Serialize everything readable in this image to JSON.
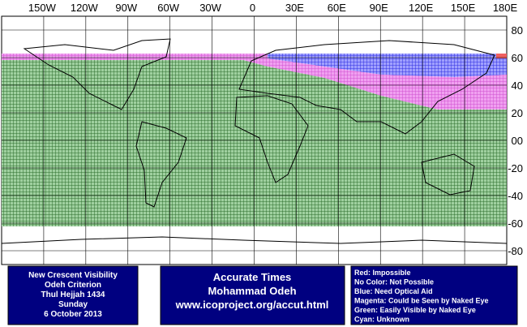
{
  "map": {
    "lon_labels": [
      "150W",
      "120W",
      "90W",
      "60W",
      "30W",
      "0",
      "30E",
      "60E",
      "90E",
      "120E",
      "150E",
      "180E"
    ],
    "lat_labels": [
      "80",
      "60",
      "40",
      "20",
      "00",
      "-20",
      "-40",
      "-60",
      "-80"
    ]
  },
  "info": {
    "left": [
      "New Crescent Visibility",
      "Odeh Criterion",
      "Thul Hejjah 1434",
      "Sunday",
      "6 October 2013"
    ],
    "center": [
      "Accurate Times",
      "Mohammad Odeh",
      "www.icoproject.org/accut.html"
    ],
    "legend": [
      "Red: Impossible",
      "No Color: Not Possible",
      "Blue: Need Optical Aid",
      "Magenta: Could be Seen by Naked Eye",
      "Green: Easily Visible by Naked Eye",
      "Cyan: Unknown"
    ]
  }
}
